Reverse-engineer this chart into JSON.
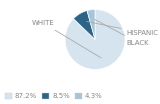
{
  "slices": [
    87.2,
    8.5,
    4.3
  ],
  "labels": [
    "WHITE",
    "HISPANIC",
    "BLACK"
  ],
  "colors": [
    "#d6e4f0",
    "#2e6388",
    "#a8c4d8"
  ],
  "legend_labels": [
    "87.2%",
    "8.5%",
    "4.3%"
  ],
  "legend_colors": [
    "#d6e4f0",
    "#2e6388",
    "#a8c4d8"
  ],
  "startangle": 90,
  "background_color": "#ffffff",
  "text_color": "#888888",
  "line_color": "#aaaaaa"
}
